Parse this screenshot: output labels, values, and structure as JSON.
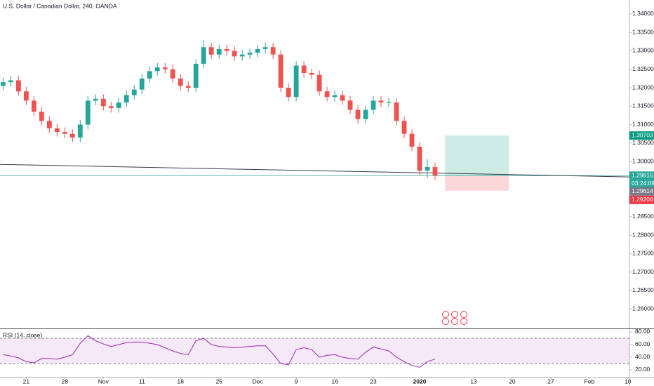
{
  "chart_data": [
    {
      "type": "candlestick",
      "title": "U.S. Dollar / Canadian Dollar, 240, OANDA",
      "x": [
        -3,
        -2,
        -1,
        0,
        1,
        2,
        3,
        4,
        5,
        6,
        7,
        8,
        9,
        10,
        11,
        12,
        13,
        14,
        15,
        16,
        17,
        18,
        19,
        20,
        21,
        22,
        23,
        24,
        25,
        26,
        27,
        28,
        29,
        30,
        31,
        32,
        33,
        34,
        35,
        36,
        37,
        38,
        39,
        40,
        41,
        42,
        43,
        44,
        45,
        46,
        47,
        48,
        49,
        50,
        51,
        52,
        53
      ],
      "open": [
        1.3205,
        1.3215,
        1.322,
        1.319,
        1.3165,
        1.3135,
        1.311,
        1.309,
        1.308,
        1.3075,
        1.3065,
        1.31,
        1.3165,
        1.317,
        1.315,
        1.3145,
        1.316,
        1.318,
        1.3195,
        1.3225,
        1.3245,
        1.3255,
        1.325,
        1.3225,
        1.3205,
        1.32,
        1.3265,
        1.331,
        1.329,
        1.3305,
        1.33,
        1.3285,
        1.329,
        1.3295,
        1.3305,
        1.331,
        1.329,
        1.32,
        1.3175,
        1.326,
        1.324,
        1.3235,
        1.319,
        1.3175,
        1.318,
        1.3165,
        1.314,
        1.3115,
        1.314,
        1.3165,
        1.316,
        1.316,
        1.311,
        1.3075,
        1.304,
        1.2975,
        1.2985
      ],
      "high": [
        1.3227,
        1.3232,
        1.3232,
        1.3202,
        1.3177,
        1.3147,
        1.3122,
        1.3102,
        1.3092,
        1.3087,
        1.3112,
        1.3177,
        1.3182,
        1.3182,
        1.3162,
        1.3172,
        1.3192,
        1.3207,
        1.3237,
        1.3257,
        1.3267,
        1.3267,
        1.3262,
        1.3237,
        1.3217,
        1.3277,
        1.333,
        1.3322,
        1.3317,
        1.3317,
        1.3312,
        1.3302,
        1.3307,
        1.3317,
        1.3322,
        1.3322,
        1.3302,
        1.3212,
        1.3272,
        1.3272,
        1.3252,
        1.3247,
        1.3202,
        1.3192,
        1.3192,
        1.3177,
        1.3152,
        1.3152,
        1.3177,
        1.3177,
        1.3172,
        1.3172,
        1.3122,
        1.3087,
        1.3052,
        1.3007,
        1.2997
      ],
      "low": [
        1.3193,
        1.3203,
        1.3178,
        1.3153,
        1.3123,
        1.3098,
        1.3078,
        1.3068,
        1.3063,
        1.3053,
        1.3053,
        1.3088,
        1.3153,
        1.3138,
        1.3133,
        1.3133,
        1.3148,
        1.3168,
        1.3183,
        1.3213,
        1.3233,
        1.3238,
        1.3213,
        1.3193,
        1.3188,
        1.3188,
        1.3253,
        1.3278,
        1.3278,
        1.3288,
        1.3273,
        1.3273,
        1.3278,
        1.3283,
        1.3293,
        1.3278,
        1.3188,
        1.3163,
        1.3163,
        1.3228,
        1.3223,
        1.3178,
        1.3163,
        1.3163,
        1.3153,
        1.3128,
        1.3103,
        1.3103,
        1.3128,
        1.3148,
        1.3148,
        1.3098,
        1.3063,
        1.3028,
        1.2963,
        1.2955,
        1.295
      ],
      "close": [
        1.3215,
        1.322,
        1.319,
        1.3165,
        1.3135,
        1.311,
        1.309,
        1.308,
        1.3075,
        1.3065,
        1.31,
        1.3165,
        1.317,
        1.315,
        1.3145,
        1.316,
        1.318,
        1.3195,
        1.3225,
        1.3245,
        1.3255,
        1.325,
        1.3225,
        1.3205,
        1.32,
        1.3265,
        1.331,
        1.329,
        1.3305,
        1.33,
        1.3285,
        1.329,
        1.3295,
        1.3305,
        1.331,
        1.329,
        1.32,
        1.3175,
        1.326,
        1.324,
        1.3235,
        1.319,
        1.3175,
        1.318,
        1.3165,
        1.314,
        1.3115,
        1.314,
        1.3165,
        1.316,
        1.316,
        1.311,
        1.3075,
        1.304,
        1.2975,
        1.2985,
        1.2962
      ],
      "colors": {
        "up": "#26a69a",
        "down": "#ef5350",
        "target": "#089981",
        "stop": "#f23645",
        "last": "#26a69a",
        "other": "#787b86",
        "trendline": "#363a45"
      },
      "xlim": [
        -3.4,
        78.2
      ],
      "ylim": [
        1.2547,
        1.3438
      ],
      "yticks": [
        {
          "value": 1.34,
          "label": "1.34000"
        },
        {
          "value": 1.335,
          "label": "1.33500"
        },
        {
          "value": 1.33,
          "label": "1.33000"
        },
        {
          "value": 1.325,
          "label": "1.32500"
        },
        {
          "value": 1.32,
          "label": "1.32000"
        },
        {
          "value": 1.315,
          "label": "1.31500"
        },
        {
          "value": 1.31,
          "label": "1.31000"
        },
        {
          "value": 1.305,
          "label": "1.30500"
        },
        {
          "value": 1.3,
          "label": "1.30000"
        },
        {
          "value": 1.285,
          "label": "1.28500"
        },
        {
          "value": 1.28,
          "label": "1.28000"
        },
        {
          "value": 1.275,
          "label": "1.27500"
        },
        {
          "value": 1.27,
          "label": "1.27000"
        },
        {
          "value": 1.265,
          "label": "1.26500"
        },
        {
          "value": 1.26,
          "label": "1.26000"
        }
      ],
      "trendline": {
        "x": [
          -3.4,
          78.2
        ],
        "y": [
          1.2992,
          1.2958
        ]
      },
      "position": {
        "x": [
          54.3,
          62.6
        ],
        "target": 1.30703,
        "entry": 1.2962,
        "stop": 1.29206
      },
      "last_price": {
        "value": 1.29615,
        "countdown": "03:24:09"
      },
      "other_price": 1.29614
    },
    {
      "type": "line",
      "title": "RSI (14, close)",
      "x": [
        -3,
        -2,
        -1,
        0,
        1,
        2,
        3,
        4,
        5,
        6,
        7,
        8,
        9,
        10,
        11,
        12,
        13,
        14,
        15,
        16,
        17,
        18,
        19,
        20,
        21,
        22,
        23,
        24,
        25,
        26,
        27,
        28,
        29,
        30,
        31,
        32,
        33,
        34,
        35,
        36,
        37,
        38,
        39,
        40,
        41,
        42,
        43,
        44,
        45,
        46,
        47,
        48,
        49,
        50,
        51,
        52,
        53
      ],
      "values": [
        44,
        42,
        39,
        33,
        31,
        38,
        38,
        37,
        40,
        44,
        62,
        74,
        66,
        61,
        57,
        60,
        63,
        64,
        64,
        62,
        60,
        55,
        50,
        46,
        44,
        66,
        70,
        60,
        57,
        56,
        55,
        56,
        57,
        58,
        58,
        45,
        30,
        28,
        52,
        55,
        52,
        40,
        43,
        44,
        40,
        38,
        37,
        48,
        56,
        53,
        50,
        40,
        33,
        27,
        24,
        33,
        37
      ],
      "color": "#9c27b0",
      "band": [
        30,
        70
      ],
      "xlim": [
        -3.4,
        78.2
      ],
      "ylim": [
        10,
        83.3
      ],
      "yticks": [
        {
          "value": 80,
          "label": "80.00"
        },
        {
          "value": 60,
          "label": "60.00"
        },
        {
          "value": 40,
          "label": "40.00"
        },
        {
          "value": 20,
          "label": "20.00"
        }
      ],
      "xticks": [
        {
          "value": 0,
          "label": "21"
        },
        {
          "value": 5,
          "label": "28"
        },
        {
          "value": 10,
          "label": "Nov"
        },
        {
          "value": 15,
          "label": "11"
        },
        {
          "value": 20,
          "label": "18"
        },
        {
          "value": 25,
          "label": "25"
        },
        {
          "value": 30,
          "label": "Dec"
        },
        {
          "value": 35,
          "label": "9"
        },
        {
          "value": 40,
          "label": "16"
        },
        {
          "value": 45,
          "label": "23"
        },
        {
          "value": 51,
          "label": "2020"
        },
        {
          "value": 58,
          "label": "13"
        },
        {
          "value": 63,
          "label": "20"
        },
        {
          "value": 68,
          "label": "27"
        },
        {
          "value": 73,
          "label": "Feb"
        },
        {
          "value": 78,
          "label": "10"
        }
      ]
    }
  ]
}
